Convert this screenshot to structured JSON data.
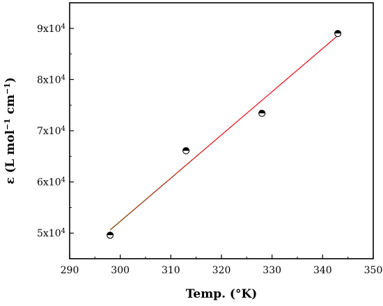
{
  "chart_data": {
    "type": "scatter",
    "title": "",
    "xlabel": "Temp. (°K)",
    "ylabel": {
      "base": "ε (L mol",
      "exp1": "−1",
      "mid": " cm",
      "exp2": "−1",
      "end": ")"
    },
    "xlim": [
      290,
      350
    ],
    "ylim": [
      45000,
      95000
    ],
    "x_ticks": [
      290,
      300,
      310,
      320,
      330,
      340,
      350
    ],
    "y_ticks": [
      {
        "value": 50000,
        "mantissa": "5x10",
        "exp": "4"
      },
      {
        "value": 60000,
        "mantissa": "6x10",
        "exp": "4"
      },
      {
        "value": 70000,
        "mantissa": "7x10",
        "exp": "4"
      },
      {
        "value": 80000,
        "mantissa": "8x10",
        "exp": "4"
      },
      {
        "value": 90000,
        "mantissa": "9x10",
        "exp": "4"
      }
    ],
    "points": [
      {
        "x": 298,
        "y": 49600
      },
      {
        "x": 313,
        "y": 66100
      },
      {
        "x": 328,
        "y": 73400
      },
      {
        "x": 343,
        "y": 89000
      }
    ],
    "fit_line": {
      "x": [
        298,
        343
      ],
      "y": [
        50600,
        88600
      ]
    },
    "colors": {
      "fit_start": "#6b4a00",
      "fit_end": "#e8161d",
      "marker": "#000000",
      "axes": "#000000"
    },
    "grid": false,
    "legend": "none"
  }
}
